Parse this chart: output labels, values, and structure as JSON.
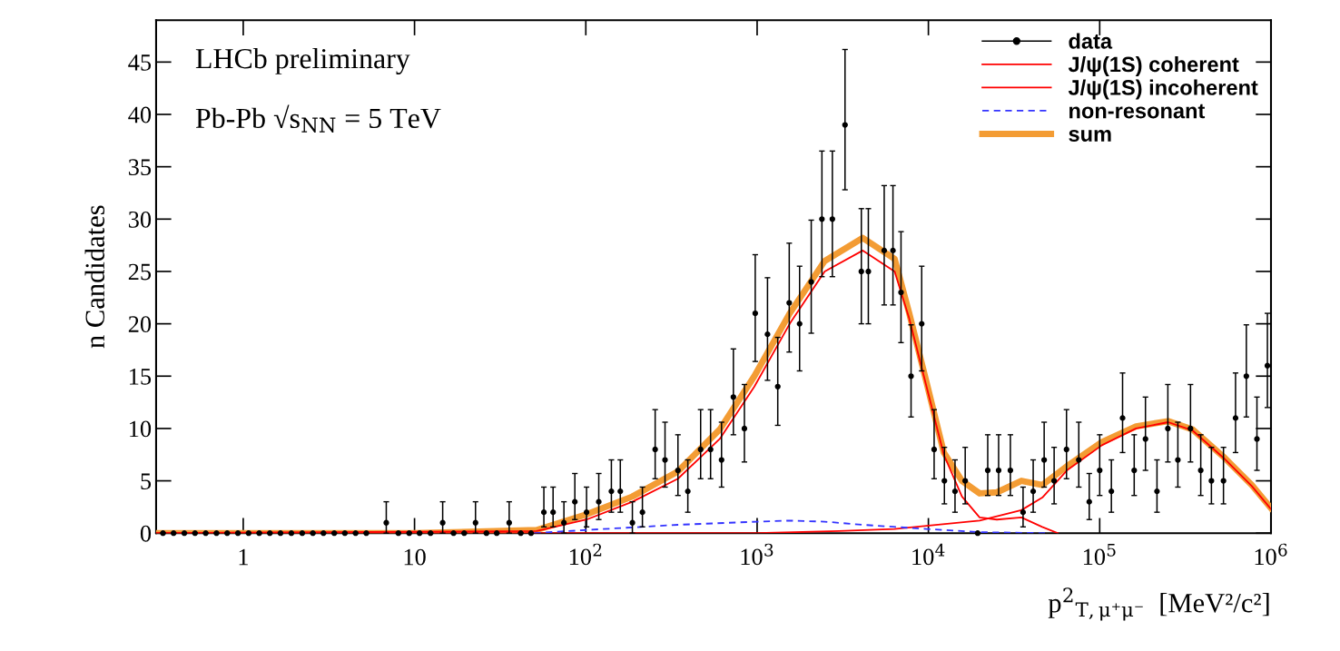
{
  "chart_data": {
    "type": "scatter",
    "xlabel": "p$^{2}$$_{T,μ⁺μ⁻}$  [MeV²/c²]",
    "ylabel": "n Candidates",
    "annotations": [
      "LHCb preliminary",
      "Pb-Pb √s$_{NN}$ = 5 TeV"
    ],
    "log": "x",
    "xlim": [
      0.31,
      1000000
    ],
    "ylim": [
      0,
      49
    ],
    "xticks": [
      1,
      10,
      {
        "value": 100,
        "label": "10$^{2}$"
      },
      {
        "value": 1000,
        "label": "10$^{3}$"
      },
      {
        "value": 10000,
        "label": "10$^{4}$"
      },
      {
        "value": 100000,
        "label": "10$^{5}$"
      },
      {
        "value": 1000000,
        "label": "10$^{6}$"
      }
    ],
    "yticks": [
      0,
      5,
      10,
      15,
      20,
      25,
      30,
      35,
      40,
      45
    ],
    "grid": false,
    "legend": "top right",
    "series": [
      {
        "name": "data",
        "color": "#000000",
        "marker": "circle",
        "x": [
          0.34,
          0.392,
          0.453,
          0.523,
          0.604,
          0.698,
          0.806,
          0.931,
          1.075,
          1.24,
          1.43,
          1.65,
          1.91,
          2.21,
          2.55,
          2.94,
          3.4,
          3.92,
          4.53,
          5.23,
          6.84,
          8.05,
          9.31,
          10.7,
          12.4,
          14.6,
          16.9,
          19.5,
          22.7,
          26.3,
          30.2,
          35.7,
          41.7,
          47.9,
          56.9,
          64.4,
          74.5,
          86.3,
          101,
          119,
          141,
          159,
          187,
          214,
          254,
          290,
          345,
          394,
          468,
          535,
          620,
          727,
          843,
          975,
          1150,
          1320,
          1540,
          1770,
          2070,
          2390,
          2750,
          3260,
          4060,
          4460,
          5520,
          6210,
          6920,
          7920,
          9140,
          10800,
          12400,
          14300,
          16400,
          19400,
          22200,
          25700,
          30100,
          35700,
          40900,
          47400,
          54200,
          64000,
          75500,
          86900,
          100000,
          117000,
          136000,
          159000,
          185000,
          216000,
          250000,
          286000,
          339000,
          389000,
          449000,
          528000,
          621000,
          718000,
          828000,
          953000
        ],
        "values": [
          0,
          0,
          0,
          0,
          0,
          0,
          0,
          0,
          0,
          0,
          0,
          0,
          0,
          0,
          0,
          0,
          0,
          0,
          0,
          0,
          1,
          0,
          0,
          0,
          0,
          1,
          0,
          0,
          1,
          0,
          0,
          1,
          0,
          0,
          2,
          2,
          1,
          3,
          2,
          3,
          4,
          4,
          1,
          2,
          8,
          7,
          6,
          4,
          8,
          8,
          7,
          13,
          10,
          21,
          19,
          14,
          22,
          20,
          24,
          30,
          30,
          39,
          25,
          25,
          27,
          27,
          23,
          15,
          20,
          8,
          5,
          4,
          5,
          0,
          6,
          6,
          6,
          2,
          4,
          7,
          5,
          8,
          7,
          3,
          6,
          4,
          11,
          6,
          9,
          4,
          10,
          7,
          10,
          6,
          5,
          5,
          11,
          15,
          9,
          16
        ],
        "errors": [
          null,
          null,
          null,
          null,
          null,
          null,
          null,
          null,
          null,
          null,
          null,
          null,
          null,
          null,
          null,
          null,
          null,
          null,
          null,
          null,
          [
            0,
            3
          ],
          null,
          null,
          null,
          null,
          [
            0,
            3
          ],
          null,
          null,
          [
            0,
            3
          ],
          null,
          null,
          [
            0,
            3
          ],
          null,
          null,
          [
            0.6,
            4.4
          ],
          [
            0.6,
            4.4
          ],
          [
            0,
            3
          ],
          [
            1.3,
            5.7
          ],
          [
            0.6,
            4.4
          ],
          [
            1.3,
            5.7
          ],
          [
            2,
            7
          ],
          [
            2,
            7
          ],
          [
            0,
            3
          ],
          [
            0.6,
            4.4
          ],
          [
            5.2,
            11.8
          ],
          [
            4.4,
            10.6
          ],
          [
            3.6,
            9.4
          ],
          [
            2,
            7
          ],
          [
            5.2,
            11.8
          ],
          [
            5.2,
            11.8
          ],
          [
            4.4,
            10.6
          ],
          [
            9.4,
            17.6
          ],
          [
            6.8,
            14.2
          ],
          [
            16.4,
            26.6
          ],
          [
            14.6,
            24.4
          ],
          [
            10.3,
            18.7
          ],
          [
            17.3,
            27.7
          ],
          [
            15.5,
            25.5
          ],
          [
            19.1,
            29.9
          ],
          [
            24.5,
            36.5
          ],
          [
            24.5,
            36.5
          ],
          [
            32.8,
            46.2
          ],
          [
            20,
            31
          ],
          [
            20,
            31
          ],
          [
            21.8,
            33.2
          ],
          [
            21.8,
            33.2
          ],
          [
            18.2,
            28.8
          ],
          [
            11.1,
            19.9
          ],
          [
            15.5,
            25.5
          ],
          [
            5.2,
            11.8
          ],
          [
            2.8,
            8.2
          ],
          [
            2,
            7
          ],
          [
            2.8,
            8.2
          ],
          null,
          [
            3.6,
            9.4
          ],
          [
            3.6,
            9.4
          ],
          [
            3.6,
            9.4
          ],
          [
            0.6,
            4.4
          ],
          [
            2,
            7
          ],
          [
            4.4,
            10.6
          ],
          [
            2.8,
            8.2
          ],
          [
            5.2,
            11.8
          ],
          [
            4.4,
            10.6
          ],
          [
            1.3,
            5.7
          ],
          [
            3.6,
            9.4
          ],
          [
            2,
            7
          ],
          [
            7.7,
            15.3
          ],
          [
            3.6,
            9.4
          ],
          [
            6,
            13
          ],
          [
            2,
            7
          ],
          [
            6.8,
            14.2
          ],
          [
            4.4,
            10.6
          ],
          [
            6.8,
            14.2
          ],
          [
            3.6,
            9.4
          ],
          [
            2.8,
            8.2
          ],
          [
            2.8,
            8.2
          ],
          [
            7.7,
            15.3
          ],
          [
            11.1,
            19.9
          ],
          [
            6,
            13
          ],
          [
            12,
            21
          ]
        ]
      },
      {
        "name": "J/ψ(1S) coherent",
        "type": "line",
        "color": "#ff0000",
        "line_style": "solid",
        "x": [
          0.31,
          51.6,
          101,
          187,
          345,
          605,
          964,
          1550,
          2480,
          4140,
          6350,
          7730,
          9750,
          12300,
          15700,
          19900,
          25100,
          34900,
          46200,
          57000
        ],
        "values": [
          0,
          0.2,
          1.3,
          3.0,
          5.2,
          9,
          14,
          20,
          25,
          27,
          25,
          20.5,
          14,
          7.5,
          3.5,
          1.5,
          1.3,
          1.5,
          0.6,
          0
        ]
      },
      {
        "name": "J/ψ(1S) incoherent",
        "type": "line",
        "color": "#ff0000",
        "line_style": "solid",
        "x": [
          0.31,
          1000,
          3000,
          6350,
          9750,
          19900,
          34900,
          46200,
          64400,
          103000,
          163000,
          251000,
          349000,
          528000,
          773000,
          1000000
        ],
        "values": [
          0,
          0,
          0.2,
          0.4,
          0.7,
          1.2,
          2.2,
          3.4,
          6.0,
          8.4,
          10,
          10.6,
          9.8,
          7.2,
          4.5,
          2.3
        ]
      },
      {
        "name": "non-resonant",
        "type": "line",
        "color": "#3333ff",
        "line_style": "dashed",
        "x": [
          50,
          100,
          345,
          1000,
          1550,
          2480,
          4140,
          9750,
          19900,
          50000
        ],
        "values": [
          0,
          0.3,
          0.8,
          1.1,
          1.2,
          1.1,
          0.8,
          0.4,
          0.1,
          0
        ]
      },
      {
        "name": "sum",
        "type": "line",
        "color": "#f39c34",
        "line_style": "solid",
        "x": [
          0.31,
          10,
          51.6,
          101,
          187,
          345,
          605,
          964,
          1550,
          2480,
          4140,
          6350,
          7730,
          9750,
          12300,
          15700,
          19900,
          25100,
          34900,
          46200,
          64400,
          103000,
          163000,
          251000,
          349000,
          528000,
          773000,
          1000000
        ],
        "values": [
          0,
          0,
          0.3,
          1.8,
          3.5,
          5.9,
          9.9,
          15,
          21,
          26,
          28.2,
          26.2,
          21,
          14.4,
          7.7,
          5,
          3.8,
          3.9,
          5,
          4.6,
          6.4,
          8.7,
          10.2,
          10.7,
          9.9,
          7.3,
          4.6,
          2.4
        ]
      }
    ]
  }
}
